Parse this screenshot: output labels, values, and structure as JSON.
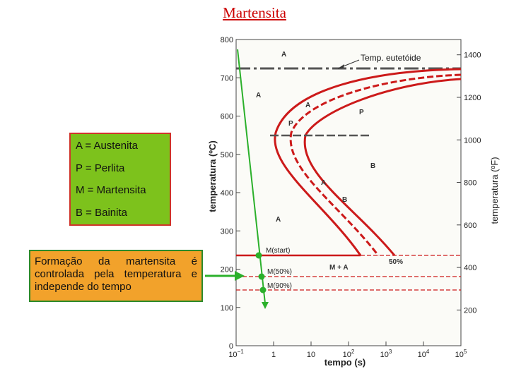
{
  "slide": {
    "title": "Martensita"
  },
  "legend": {
    "items": [
      "A = Austenita",
      "P = Perlita",
      "M = Martensita",
      "B = Bainita"
    ]
  },
  "note": {
    "text": "Formação da martensita é controlada pela temperatura e independe do tempo"
  },
  "chart_data": {
    "type": "diagram",
    "xlabel": "tempo (s)",
    "ylabel_left": "temperatura (ºC)",
    "ylabel_right": "temperatura (ºF)",
    "x_scale": "log",
    "x_ticks": [
      {
        "value": 0.1,
        "base": "10",
        "exp": "−1"
      },
      {
        "value": 1,
        "base": "1",
        "exp": ""
      },
      {
        "value": 10,
        "base": "10",
        "exp": ""
      },
      {
        "value": 100,
        "base": "10",
        "exp": "2"
      },
      {
        "value": 1000,
        "base": "10",
        "exp": "3"
      },
      {
        "value": 10000,
        "base": "10",
        "exp": "4"
      },
      {
        "value": 100000,
        "base": "10",
        "exp": "5"
      }
    ],
    "y_ticks_c": [
      "0",
      "100",
      "200",
      "300",
      "400",
      "500",
      "600",
      "700",
      "800"
    ],
    "y_ticks_f": [
      "200",
      "400",
      "600",
      "800",
      "1000",
      "1200",
      "1400"
    ],
    "eutectoid_label": "Temp. eutetóide",
    "region_labels": [
      "A",
      "A",
      "A",
      "P",
      "P",
      "B",
      "A",
      "B",
      "A",
      "M + A",
      "50%"
    ],
    "martensite_lines": [
      {
        "label": "M(start)",
        "temp_c": 220
      },
      {
        "label": "M(50%)",
        "temp_c": 165
      },
      {
        "label": "M(90%)",
        "temp_c": 130
      }
    ],
    "colors": {
      "curves": "#cc1a1a",
      "cooling": "#2bb02b",
      "eutectoid": "#555555",
      "title": "#cc0000"
    }
  }
}
